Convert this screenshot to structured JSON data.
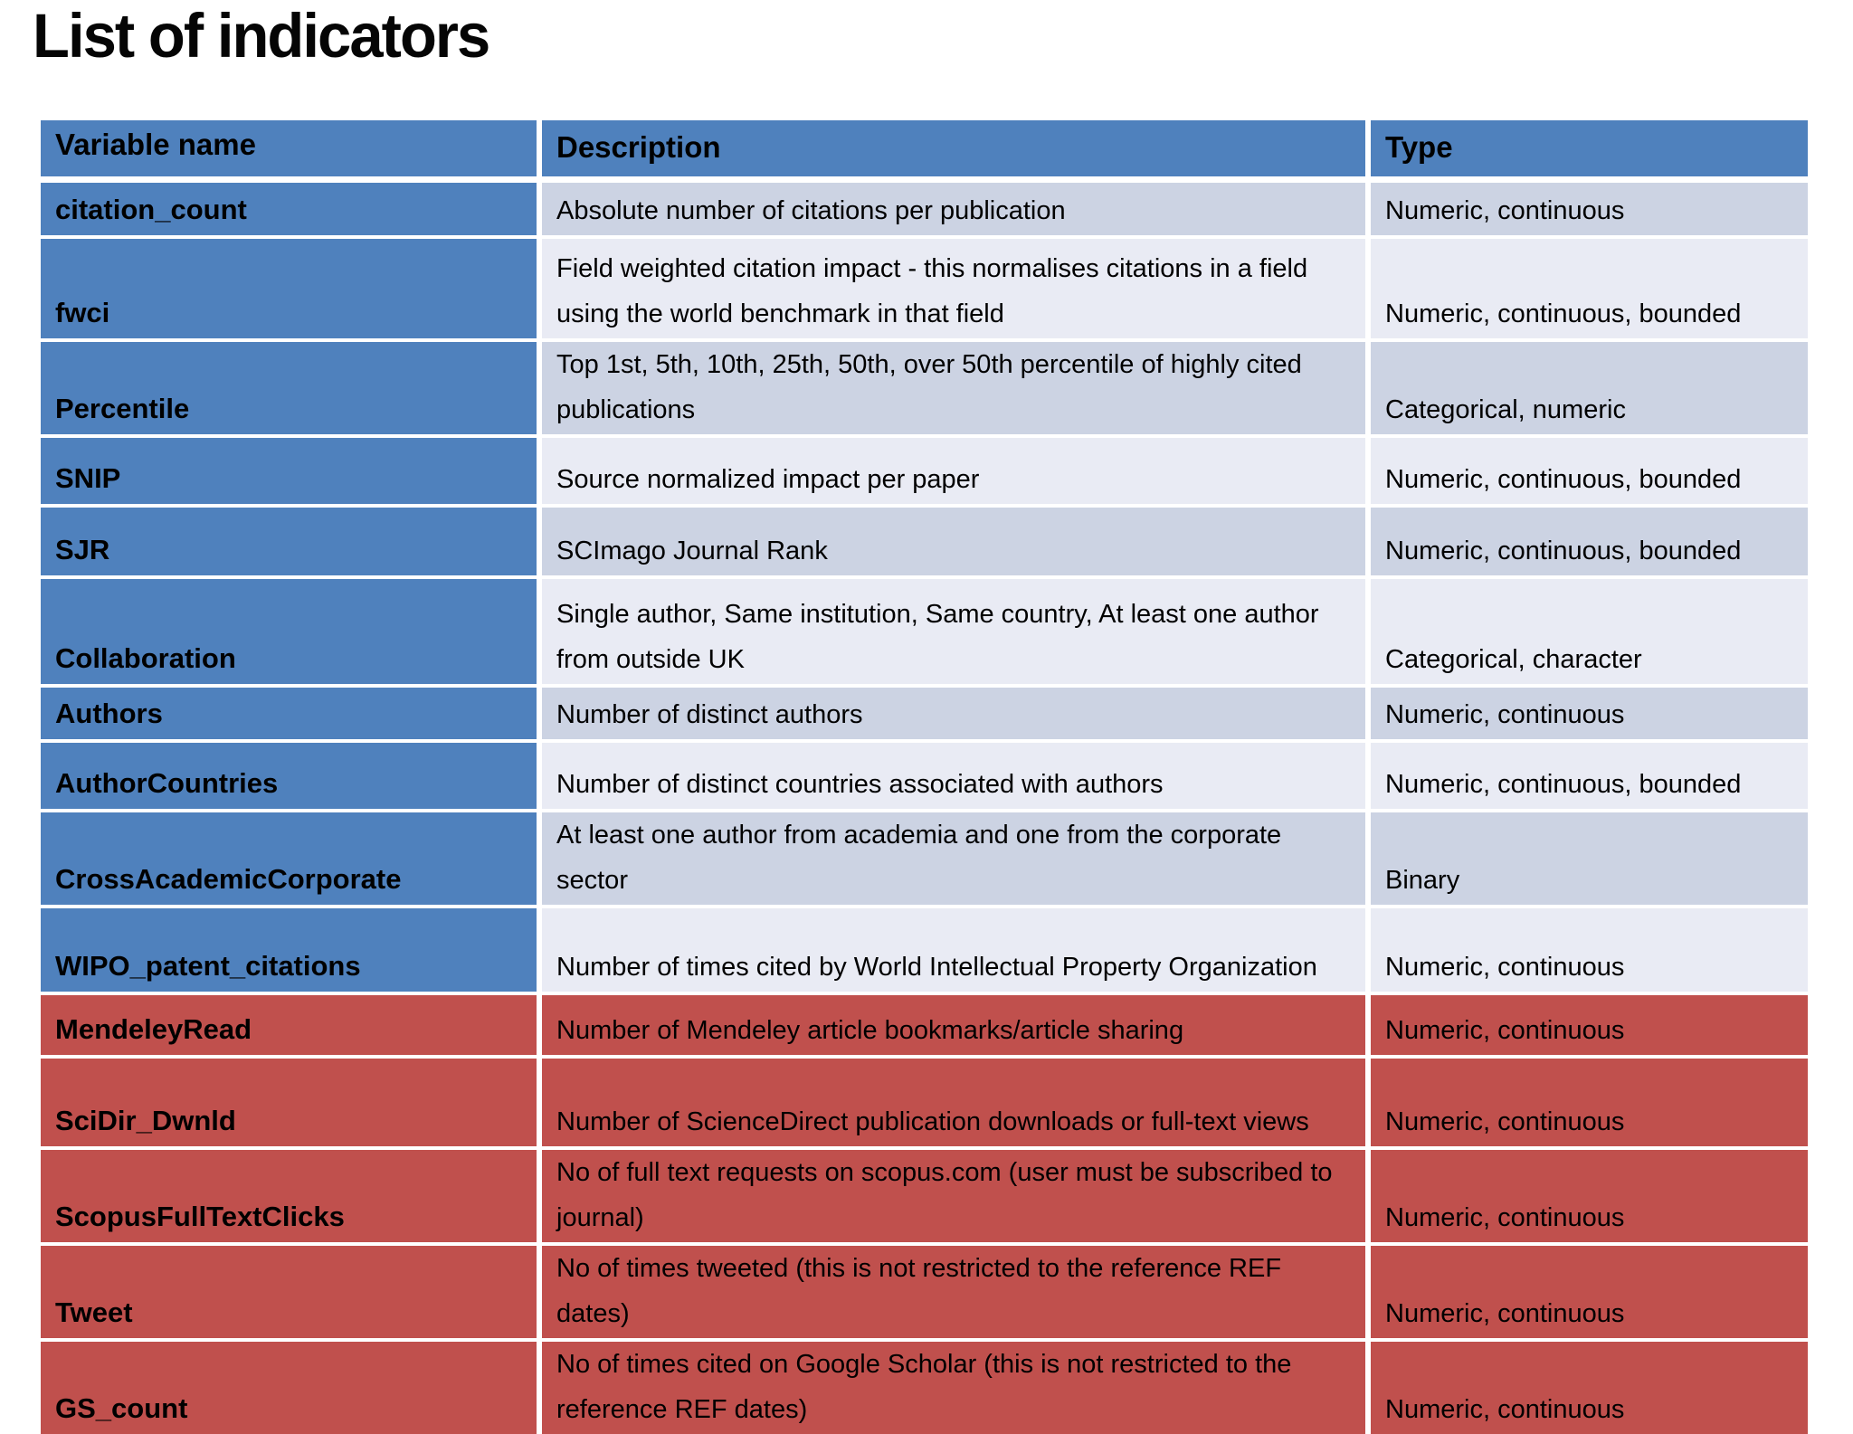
{
  "page": {
    "title": "List of indicators"
  },
  "colors": {
    "header_blue": "#4f81bd",
    "band_dark": "#ccd3e3",
    "band_light": "#e9ebf4",
    "altmetric_red": "#c0504d"
  },
  "table": {
    "columns": [
      {
        "label": "Variable name"
      },
      {
        "label": "Description"
      },
      {
        "label": "Type"
      }
    ],
    "rows": [
      {
        "name": "citation_count",
        "description": "Absolute number of citations per publication",
        "type": "Numeric, continuous",
        "group": "blue"
      },
      {
        "name": "fwci",
        "description": "Field weighted citation impact - this normalises citations in a field using the world benchmark in that field",
        "type": "Numeric, continuous, bounded",
        "group": "blue"
      },
      {
        "name": "Percentile",
        "description": "Top 1st, 5th, 10th, 25th, 50th, over 50th percentile of highly cited publications",
        "type": "Categorical, numeric",
        "group": "blue"
      },
      {
        "name": "SNIP",
        "description": "Source normalized impact per paper",
        "type": "Numeric, continuous, bounded",
        "group": "blue"
      },
      {
        "name": "SJR",
        "description": "SCImago Journal Rank",
        "type": "Numeric, continuous, bounded",
        "group": "blue"
      },
      {
        "name": "Collaboration",
        "description": "Single author, Same institution, Same country, At least one author from outside UK",
        "type": "Categorical, character",
        "group": "blue"
      },
      {
        "name": "Authors",
        "description": "Number of distinct authors",
        "type": "Numeric, continuous",
        "group": "blue"
      },
      {
        "name": "AuthorCountries",
        "description": "Number of distinct countries associated with authors",
        "type": "Numeric, continuous, bounded",
        "group": "blue"
      },
      {
        "name": "CrossAcademicCorporate",
        "description": "At least one author from academia and one from the corporate sector",
        "type": "Binary",
        "group": "blue"
      },
      {
        "name": "WIPO_patent_citations",
        "description": "Number of times cited by World Intellectual Property Organization",
        "type": "Numeric, continuous",
        "group": "blue"
      },
      {
        "name": "MendeleyRead",
        "description": "Number of Mendeley article bookmarks/article sharing",
        "type": "Numeric, continuous",
        "group": "red"
      },
      {
        "name": "SciDir_Dwnld",
        "description": "Number of ScienceDirect publication downloads or full-text views",
        "type": "Numeric, continuous",
        "group": "red"
      },
      {
        "name": "ScopusFullTextClicks",
        "description": "No of full text requests on scopus.com (user must be subscribed to journal)",
        "type": "Numeric, continuous",
        "group": "red"
      },
      {
        "name": "Tweet",
        "description": "No of times tweeted (this is not restricted to the reference REF dates)",
        "type": "Numeric, continuous",
        "group": "red"
      },
      {
        "name": "GS_count",
        "description": "No of times cited on Google Scholar (this is not restricted to the reference REF dates)",
        "type": "Numeric, continuous",
        "group": "red"
      }
    ]
  }
}
